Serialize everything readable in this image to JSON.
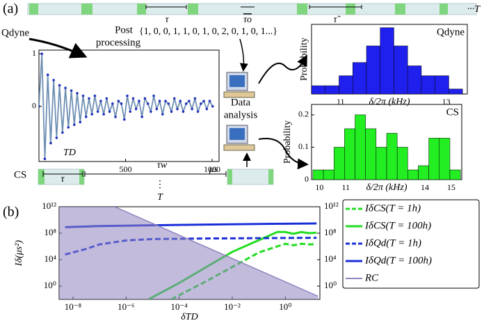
{
  "diagram": {
    "panel_a": "(a)",
    "panel_b": "(b)",
    "timeline": {
      "tau": "τ",
      "tau_o": "τo",
      "tau_tilde": "τ̃",
      "end": "···T"
    },
    "qdyne": "Qdyne",
    "post_processing": [
      "Post",
      "processing"
    ],
    "sequence": "{1, 0, 0, 1, 1, 0, 1, 0, 2, 0, 1, 0, 1...}",
    "data_analysis": [
      "Data",
      "analysis"
    ],
    "cs": {
      "label": "CS",
      "tau": "τ",
      "tau_w": "τw",
      "dots": "⋮",
      "T": "T"
    }
  },
  "chart_data": [
    {
      "type": "line",
      "annotation": "TD",
      "x_label": "μs",
      "xlim": [
        0,
        1040
      ],
      "ylim": [
        -1.05,
        1.07
      ],
      "xticks": [
        500,
        1000
      ],
      "yticks": [
        0,
        1
      ],
      "series": [
        {
          "color": "#6f8fb3",
          "marker_color": "#2233bb",
          "x": [
            0,
            17,
            34,
            51,
            68,
            85,
            102,
            119,
            136,
            153,
            170,
            187,
            204,
            221,
            238,
            255,
            272,
            289,
            306,
            323,
            340,
            357,
            374,
            391,
            408,
            425,
            442,
            459,
            476,
            493,
            510,
            527,
            544,
            561,
            578,
            595,
            612,
            629,
            646,
            663,
            680,
            697,
            714,
            731,
            748,
            765,
            782,
            799,
            816,
            833,
            850,
            867,
            884,
            901,
            918,
            935,
            952,
            969,
            986,
            1003
          ],
          "values": [
            0,
            1.0,
            -1.0,
            0.6,
            -0.7,
            0.5,
            -0.6,
            0.4,
            -0.5,
            0.35,
            -0.4,
            0.3,
            -0.35,
            0.25,
            -0.3,
            0.2,
            -0.2,
            0.15,
            -0.15,
            0.2,
            -0.1,
            0.1,
            -0.15,
            0.15,
            -0.1,
            0.05,
            -0.2,
            0.1,
            0.05,
            -0.25,
            0.2,
            -0.1,
            0.15,
            -0.05,
            0.1,
            -0.2,
            0.15,
            0.05,
            -0.1,
            0.2,
            -0.05,
            0.1,
            -0.15,
            0.1,
            0.05,
            -0.1,
            0.15,
            -0.05,
            0.1,
            -0.1,
            0.05,
            0.1,
            -0.05,
            0.15,
            -0.1,
            0.05,
            0.1,
            -0.05,
            0.1,
            0.0
          ]
        }
      ]
    },
    {
      "type": "histogram",
      "title": "Qdyne",
      "x_label": "δ/2π (kHz)",
      "y_label": "Probability",
      "color": "#2020ee",
      "bins": [
        10.45,
        10.71,
        10.97,
        11.23,
        11.49,
        11.75,
        12.01,
        12.27,
        12.53,
        12.79,
        13.05,
        13.31
      ],
      "values": [
        0.025,
        0.025,
        0.055,
        0.095,
        0.145,
        0.2,
        0.145,
        0.085,
        0.055,
        0.055,
        0.015
      ],
      "xlim": [
        10.45,
        13.4
      ],
      "ylim": [
        0,
        0.21
      ],
      "xticks": [
        11,
        12,
        13
      ]
    },
    {
      "type": "histogram",
      "title": "CS",
      "x_label": "δ/2π (kHz)",
      "y_label": "Probability",
      "color": "#22ee22",
      "bins": [
        9.75,
        10.15,
        10.55,
        10.95,
        11.35,
        11.75,
        12.15,
        12.55,
        12.95,
        13.35,
        13.75,
        14.15,
        14.55,
        14.95,
        15.35
      ],
      "values": [
        0.03,
        0.03,
        0.1,
        0.157,
        0.2,
        0.157,
        0.1,
        0.143,
        0.1,
        0.03,
        0.043,
        0.128,
        0.128,
        0.03
      ],
      "xlim": [
        9.7,
        15.4
      ],
      "ylim": [
        0,
        0.232
      ],
      "xticks": [
        10,
        11,
        12,
        13,
        14,
        15
      ],
      "yticks": [
        0,
        0.1,
        0.2
      ]
    },
    {
      "type": "line",
      "log_x": true,
      "log_y": true,
      "x_label": "δTD",
      "y_label": "Iδ(μs²)",
      "legend": "right",
      "xlim": [
        3e-09,
        20
      ],
      "ylim": [
        0.01,
        1000000000000.0
      ],
      "xticks": [
        {
          "value": 1e-08,
          "label": "10⁻⁸"
        },
        {
          "value": 1e-06,
          "label": "10⁻⁶"
        },
        {
          "value": 0.0001,
          "label": "10⁻⁴"
        },
        {
          "value": 0.01,
          "label": "10⁻²"
        },
        {
          "value": 1,
          "label": "10⁰"
        }
      ],
      "yticks": [
        {
          "value": 1,
          "label": "10⁰"
        },
        {
          "value": 10000.0,
          "label": "10⁴"
        },
        {
          "value": 100000000.0,
          "label": "10⁸"
        },
        {
          "value": 1000000000000.0,
          "label": "10¹²"
        }
      ],
      "y2ticks": [
        {
          "value": 1,
          "label": "10⁰"
        },
        {
          "value": 10000.0,
          "label": "10⁴"
        },
        {
          "value": 100000000.0,
          "label": "10⁸"
        },
        {
          "value": 1000000000000.0,
          "label": "10¹²"
        }
      ],
      "series": [
        {
          "name": "IδCS(T = 1h)",
          "color": "#22dd22",
          "linestyle": "dashed",
          "x": [
            5e-05,
            0.001,
            0.1,
            1,
            2,
            4,
            8,
            15
          ],
          "values": [
            0.01,
            5,
            120000.0,
            2500000.0,
            1500000.0,
            2500000.0,
            2000000.0,
            2200000.0
          ]
        },
        {
          "name": "IδCS(T = 100h)",
          "color": "#22dd22",
          "linestyle": "solid",
          "x": [
            7e-06,
            0.0001,
            0.01,
            0.5,
            1,
            2,
            4,
            8,
            15
          ],
          "values": [
            0.01,
            3,
            150000.0,
            150000000.0,
            150000000.0,
            80000000.0,
            150000000.0,
            100000000.0,
            120000000.0
          ]
        },
        {
          "name": "IδQd(T = 1h)",
          "color": "#1a2ed8",
          "linestyle": "dashed",
          "x": [
            5e-09,
            3e-08,
            1e-07,
            1e-06,
            1e-05,
            0.001,
            15
          ],
          "values": [
            60000.0,
            400000.0,
            2000000.0,
            8000000.0,
            13000000.0,
            16000000.0,
            20000000.0
          ]
        },
        {
          "name": "IδQd(T = 100h)",
          "color": "#1a2ed8",
          "linestyle": "solid",
          "x": [
            5e-09,
            1e-07,
            1e-05,
            0.001,
            0.1,
            15
          ],
          "values": [
            800000000.0,
            1200000000.0,
            1600000000.0,
            2000000000.0,
            2500000000.0,
            3000000000.0
          ]
        },
        {
          "name": "RC",
          "color": "#8f84c0",
          "linestyle": "area",
          "x": [
            3.7e-07,
            17
          ],
          "values": [
            1000000000000.0,
            0.03
          ]
        }
      ]
    }
  ]
}
